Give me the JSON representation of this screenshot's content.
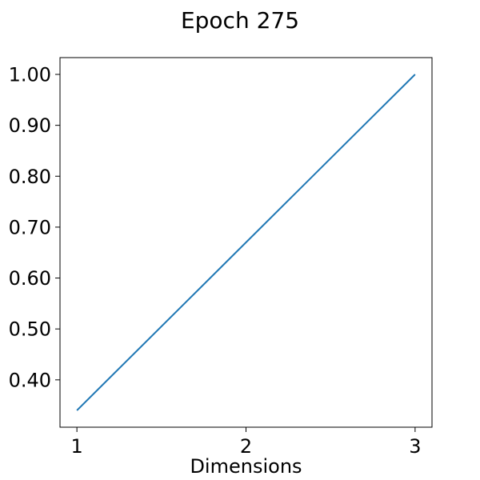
{
  "chart_data": {
    "type": "line",
    "title": "Epoch 275",
    "xlabel": "Dimensions",
    "ylabel": "",
    "x": [
      1,
      2,
      3
    ],
    "x_ticks": [
      1,
      2,
      3
    ],
    "x_tick_labels": [
      "1",
      "2",
      "3"
    ],
    "xlim": [
      0.9,
      3.1
    ],
    "y_ticks": [
      0.4,
      0.5,
      0.6,
      0.7,
      0.8,
      0.9,
      1.0
    ],
    "y_tick_labels": [
      "0.40",
      "0.50",
      "0.60",
      "0.70",
      "0.80",
      "0.90",
      "1.00"
    ],
    "ylim": [
      0.307,
      1.033
    ],
    "grid": false,
    "series": [
      {
        "values": [
          0.34,
          0.67,
          1.0
        ],
        "color": "#1f77b4"
      }
    ]
  }
}
